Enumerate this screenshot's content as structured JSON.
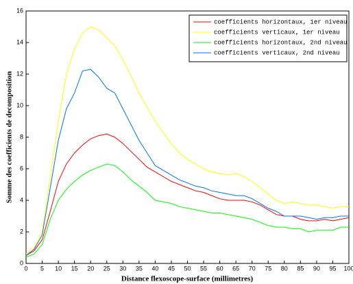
{
  "chart_data": {
    "type": "line",
    "xlabel": "Distance flexoscope-surface (millimetres)",
    "ylabel": "Somme des coefficients de decomposition",
    "x": [
      0,
      2.5,
      5,
      7.5,
      10,
      12.5,
      15,
      17.5,
      20,
      22.5,
      25,
      27.5,
      30,
      32.5,
      35,
      37.5,
      40,
      42.5,
      45,
      47.5,
      50,
      52.5,
      55,
      57.5,
      60,
      62.5,
      65,
      67.5,
      70,
      72.5,
      75,
      77.5,
      80,
      82.5,
      85,
      87.5,
      90,
      92.5,
      95,
      97.5,
      100
    ],
    "series": [
      {
        "name": "coefficients horizontaux, 1er niveau",
        "color": "#ff0000",
        "values": [
          0.5,
          0.8,
          1.5,
          3.3,
          5.2,
          6.3,
          7.0,
          7.5,
          7.9,
          8.1,
          8.2,
          8.0,
          7.6,
          7.1,
          6.6,
          6.1,
          5.8,
          5.5,
          5.2,
          5.0,
          4.8,
          4.6,
          4.5,
          4.3,
          4.1,
          4.0,
          4.0,
          4.0,
          3.9,
          3.7,
          3.4,
          3.1,
          3.0,
          3.0,
          2.8,
          2.7,
          2.7,
          2.8,
          2.7,
          2.8,
          2.9
        ]
      },
      {
        "name": "coefficients verticaux, 1er niveau",
        "color": "#ffff00",
        "values": [
          0.6,
          1.0,
          2.0,
          5.5,
          9.0,
          12.0,
          13.6,
          14.6,
          15.0,
          14.8,
          14.3,
          13.8,
          12.9,
          11.9,
          10.8,
          9.9,
          9.0,
          8.3,
          7.6,
          7.0,
          6.6,
          6.3,
          6.0,
          5.8,
          5.7,
          5.6,
          5.7,
          5.5,
          5.2,
          4.8,
          4.4,
          4.0,
          3.8,
          3.9,
          3.8,
          3.7,
          3.7,
          3.6,
          3.5,
          3.6,
          3.6
        ]
      },
      {
        "name": "coefficients horizontaux, 2nd niveau",
        "color": "#00ff00",
        "values": [
          0.4,
          0.6,
          1.2,
          2.8,
          4.0,
          4.7,
          5.2,
          5.6,
          5.9,
          6.1,
          6.3,
          6.2,
          5.8,
          5.3,
          4.9,
          4.5,
          4.0,
          3.9,
          3.8,
          3.6,
          3.5,
          3.4,
          3.3,
          3.2,
          3.2,
          3.1,
          3.0,
          2.9,
          2.8,
          2.6,
          2.4,
          2.3,
          2.3,
          2.2,
          2.2,
          2.0,
          2.1,
          2.1,
          2.1,
          2.3,
          2.3
        ]
      },
      {
        "name": "coefficients verticaux, 2nd niveau",
        "color": "#0070ff",
        "values": [
          0.5,
          0.9,
          1.8,
          4.8,
          7.8,
          9.8,
          10.8,
          12.2,
          12.3,
          11.8,
          11.1,
          10.8,
          9.8,
          8.8,
          7.8,
          7.0,
          6.2,
          5.9,
          5.6,
          5.3,
          5.1,
          4.9,
          4.8,
          4.6,
          4.5,
          4.4,
          4.3,
          4.3,
          4.1,
          3.8,
          3.5,
          3.3,
          3.0,
          3.0,
          3.0,
          2.9,
          2.8,
          2.9,
          2.9,
          3.0,
          3.0
        ]
      }
    ],
    "xlim": [
      0,
      100
    ],
    "xticks": [
      0,
      5,
      10,
      15,
      20,
      25,
      30,
      35,
      40,
      45,
      50,
      55,
      60,
      65,
      70,
      75,
      80,
      85,
      90,
      95,
      100
    ],
    "ylim": [
      0,
      16
    ],
    "yticks": [
      0,
      2,
      4,
      6,
      8,
      10,
      12,
      14,
      16
    ],
    "grid": false,
    "legend": "upper right"
  }
}
